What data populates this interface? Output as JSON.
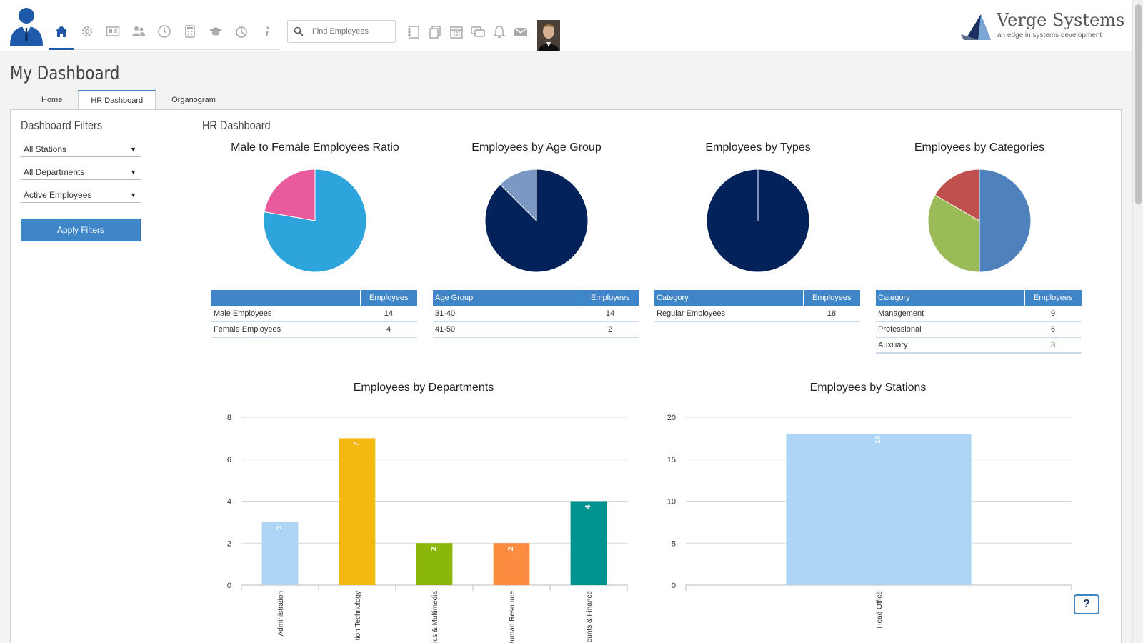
{
  "header": {
    "nav_items": [
      {
        "name": "home-icon",
        "label": "Home"
      },
      {
        "name": "gear-icon",
        "label": "Settings"
      },
      {
        "name": "id-card-icon",
        "label": "Employees"
      },
      {
        "name": "users-icon",
        "label": "Groups"
      },
      {
        "name": "clock-icon",
        "label": "Attendance"
      },
      {
        "name": "calculator-icon",
        "label": "Payroll"
      },
      {
        "name": "graduation-cap-icon",
        "label": "Training"
      },
      {
        "name": "chart-icon",
        "label": "Reports"
      },
      {
        "name": "info-icon",
        "label": "Info"
      }
    ],
    "search_placeholder": "Find Employees",
    "brand_name": "Verge Systems",
    "brand_tagline": "an edge in systems development"
  },
  "page": {
    "title": "My Dashboard",
    "tabs": [
      "Home",
      "HR Dashboard",
      "Organogram"
    ],
    "active_tab": 1
  },
  "filters": {
    "title": "Dashboard Filters",
    "station": "All Stations",
    "department": "All Departments",
    "status": "Active Employees",
    "apply_label": "Apply Filters"
  },
  "dashboard": {
    "title": "HR Dashboard",
    "pies": [
      {
        "title": "Male to Female Employees Ratio",
        "headers": [
          "",
          "Employees"
        ],
        "rows": [
          [
            "Male Employees",
            "14"
          ],
          [
            "Female Employees",
            "4"
          ]
        ],
        "values": [
          14,
          4
        ],
        "colors": [
          "#2ea4dc",
          "#ea5b9d"
        ]
      },
      {
        "title": "Employees by Age Group",
        "headers": [
          "Age Group",
          "Employees"
        ],
        "rows": [
          [
            "31-40",
            "14"
          ],
          [
            "41-50",
            "2"
          ]
        ],
        "values": [
          14,
          2
        ],
        "colors": [
          "#03225a",
          "#7b97c4"
        ]
      },
      {
        "title": "Employees by Types",
        "headers": [
          "Category",
          "Employees"
        ],
        "rows": [
          [
            "Regular Employees",
            "18"
          ]
        ],
        "values": [
          18
        ],
        "colors": [
          "#03225a"
        ]
      },
      {
        "title": "Employees by Categories",
        "headers": [
          "Category",
          "Employees"
        ],
        "rows": [
          [
            "Management",
            "9"
          ],
          [
            "Professional",
            "6"
          ],
          [
            "Auxiliary",
            "3"
          ]
        ],
        "values": [
          9,
          6,
          3
        ],
        "colors": [
          "#4f81bd",
          "#9bbb59",
          "#c0504d"
        ]
      }
    ]
  },
  "chart_data": [
    {
      "type": "bar",
      "title": "Employees by Departments",
      "categories": [
        "Administration",
        "Information Technology",
        "Graphics & Multimedia",
        "Human Resource",
        "Accounts & Finance"
      ],
      "visible_category_labels": [
        "Administration",
        "tion Technology",
        "ics & Multimedia",
        "Human Resource",
        "ounts & Finance"
      ],
      "values": [
        3,
        7,
        2,
        2,
        4
      ],
      "colors": [
        "#aed6f4",
        "#f4b90e",
        "#8ab70a",
        "#fb8c40",
        "#009390"
      ],
      "ylim": [
        0,
        8
      ],
      "yticks": [
        0,
        2,
        4,
        6,
        8
      ],
      "xlabel": "",
      "ylabel": ""
    },
    {
      "type": "bar",
      "title": "Employees by Stations",
      "categories": [
        "Head Office"
      ],
      "visible_category_labels": [
        "Head Office"
      ],
      "values": [
        18
      ],
      "colors": [
        "#aed6f4"
      ],
      "ylim": [
        0,
        20
      ],
      "yticks": [
        0,
        5,
        10,
        15,
        20
      ],
      "xlabel": "",
      "ylabel": ""
    }
  ],
  "help_label": "?"
}
